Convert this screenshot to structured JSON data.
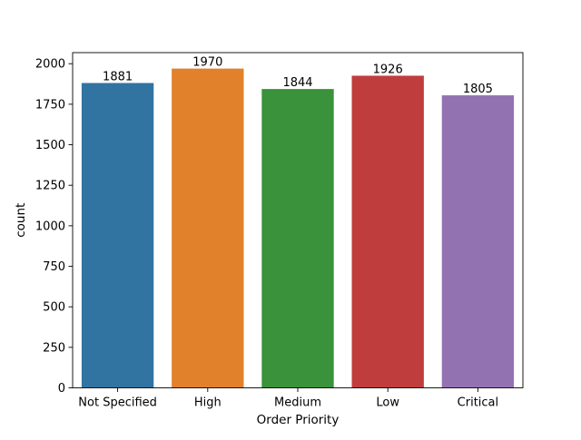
{
  "chart_data": {
    "type": "bar",
    "categories": [
      "Not Specified",
      "High",
      "Medium",
      "Low",
      "Critical"
    ],
    "values": [
      1881,
      1970,
      1844,
      1926,
      1805
    ],
    "colors": [
      "#3274a1",
      "#e1812c",
      "#3a923a",
      "#c03d3e",
      "#9372b2"
    ],
    "title": "",
    "xlabel": "Order Priority",
    "ylabel": "count",
    "ylim": [
      0,
      2068.5
    ],
    "yticks": [
      0,
      250,
      500,
      750,
      1000,
      1250,
      1500,
      1750,
      2000
    ],
    "grid": false,
    "legend": "none"
  }
}
